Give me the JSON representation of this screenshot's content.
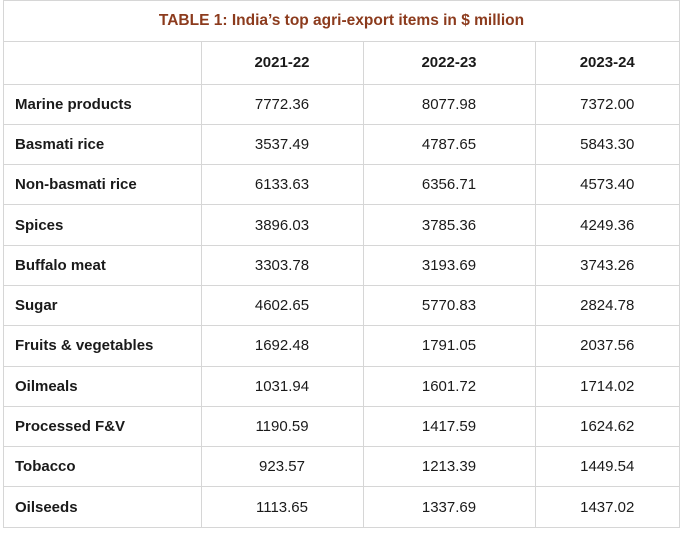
{
  "caption": "TABLE 1: India’s top agri-export items in $ million",
  "headers": [
    "",
    "2021-22",
    "2022-23",
    "2023-24"
  ],
  "rows": [
    {
      "item": "Marine products",
      "values": [
        "7772.36",
        "8077.98",
        "7372.00"
      ]
    },
    {
      "item": "Basmati rice",
      "values": [
        "3537.49",
        "4787.65",
        "5843.30"
      ]
    },
    {
      "item": "Non-basmati rice",
      "values": [
        "6133.63",
        "6356.71",
        "4573.40"
      ]
    },
    {
      "item": "Spices",
      "values": [
        "3896.03",
        "3785.36",
        "4249.36"
      ]
    },
    {
      "item": "Buffalo meat",
      "values": [
        "3303.78",
        "3193.69",
        "3743.26"
      ]
    },
    {
      "item": "Sugar",
      "values": [
        "4602.65",
        "5770.83",
        "2824.78"
      ]
    },
    {
      "item": "Fruits & vegetables",
      "values": [
        "1692.48",
        "1791.05",
        "2037.56"
      ]
    },
    {
      "item": "Oilmeals",
      "values": [
        "1031.94",
        "1601.72",
        "1714.02"
      ]
    },
    {
      "item": "Processed F&V",
      "values": [
        "1190.59",
        "1417.59",
        "1624.62"
      ]
    },
    {
      "item": "Tobacco",
      "values": [
        "923.57",
        "1213.39",
        "1449.54"
      ]
    },
    {
      "item": "Oilseeds",
      "values": [
        "1113.65",
        "1337.69",
        "1437.02"
      ]
    }
  ],
  "colors": {
    "caption": "#8c3b1d",
    "border": "#d6d6d6",
    "text": "#1a1a1a"
  }
}
